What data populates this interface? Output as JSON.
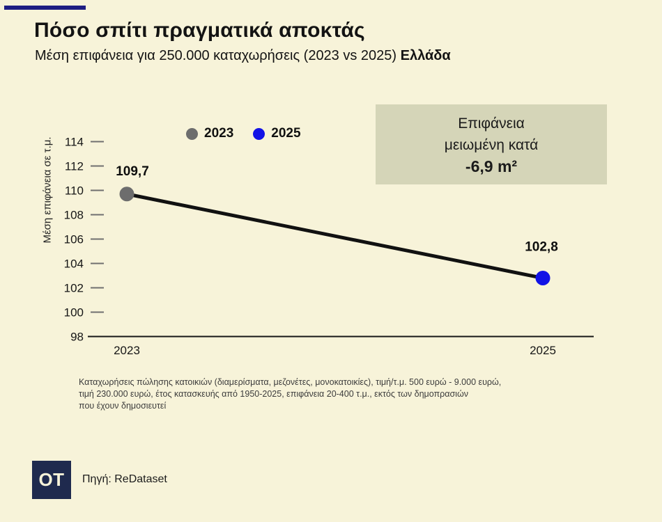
{
  "header": {
    "title": "Πόσο σπίτι πραγματικά αποκτάς",
    "subtitle": "Μέση επιφάνεια για 250.000 καταχωρήσεις (2023 vs 2025)",
    "subtitle_bold": "Ελλάδα"
  },
  "callout": {
    "line1": "Επιφάνεια",
    "line2": "μειωμένη κατά",
    "value": "-6,9 m²"
  },
  "chart_data": {
    "type": "line",
    "categories": [
      "2023",
      "2025"
    ],
    "values": [
      109.7,
      102.8
    ],
    "value_labels": [
      "109,7",
      "102,8"
    ],
    "point_colors": [
      "#6d6d6d",
      "#1212e6"
    ],
    "line_color": "#111111",
    "legend": [
      {
        "label": "2023",
        "color": "#6d6d6d"
      },
      {
        "label": "2025",
        "color": "#1212e6"
      }
    ],
    "title": "Πόσο σπίτι πραγματικά αποκτάς",
    "xlabel": "",
    "ylabel": "Μέση επιφάνεια σε τ.μ.",
    "ylim": [
      98,
      115
    ],
    "yticks": [
      98,
      100,
      102,
      104,
      106,
      108,
      110,
      112,
      114
    ],
    "grid": false,
    "legend_position": "top"
  },
  "footnote": {
    "line1": "Καταχωρήσεις πώλησης κατοικιών (διαμερίσματα, μεζονέτες, μονοκατοικίες), τιμή/τ.μ.  500 ευρώ - 9.000 ευρώ,",
    "line2": "τιμή 230.000 ευρώ, έτος κατασκευής από 1950-2025, επιφάνεια 20-400 τ.μ., εκτός των δημοπρασιών",
    "line3": "που έχουν δημοσιευτεί"
  },
  "footer": {
    "logo_text": "OT",
    "source": "Πηγή: ReDataset"
  },
  "colors": {
    "background": "#f7f3d9",
    "accent_bar": "#1e1e82",
    "callout_bg": "#d5d5b8",
    "logo_bg": "#1f2a4e",
    "dot_2023": "#6d6d6d",
    "dot_2025": "#1212e6",
    "line": "#111111"
  }
}
